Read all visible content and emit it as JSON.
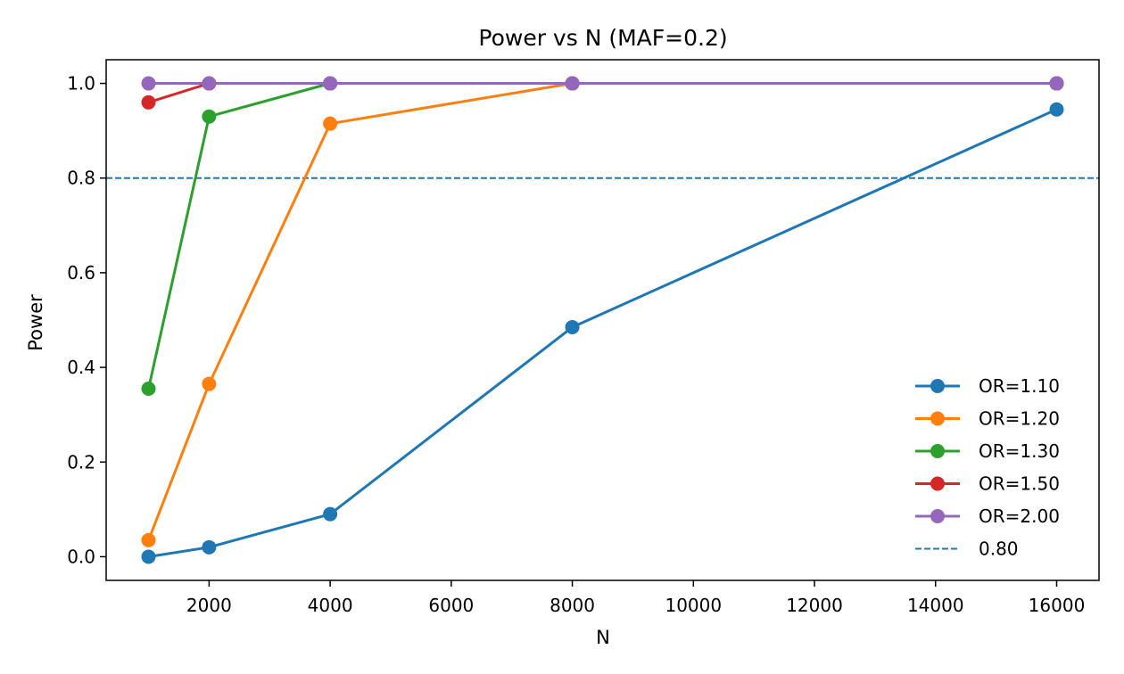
{
  "chart_data": {
    "type": "line",
    "title": "Power vs N (MAF=0.2)",
    "xlabel": "N",
    "ylabel": "Power",
    "xlim": [
      300,
      16700
    ],
    "ylim": [
      -0.05,
      1.05
    ],
    "xticks": [
      2000,
      4000,
      6000,
      8000,
      10000,
      12000,
      14000,
      16000
    ],
    "yticks": [
      0.0,
      0.2,
      0.4,
      0.6,
      0.8,
      1.0
    ],
    "xtick_labels": [
      "2000",
      "4000",
      "6000",
      "8000",
      "10000",
      "12000",
      "14000",
      "16000"
    ],
    "ytick_labels": [
      "0.0",
      "0.2",
      "0.4",
      "0.6",
      "0.8",
      "1.0"
    ],
    "grid": false,
    "legend_position": "lower-right",
    "x": [
      1000,
      2000,
      4000,
      8000,
      16000
    ],
    "series": [
      {
        "name": "OR=1.10",
        "color": "#1f77b4",
        "values": [
          0.0,
          0.02,
          0.09,
          0.485,
          0.945
        ]
      },
      {
        "name": "OR=1.20",
        "color": "#ff7f0e",
        "values": [
          0.035,
          0.365,
          0.915,
          1.0,
          1.0
        ]
      },
      {
        "name": "OR=1.30",
        "color": "#2ca02c",
        "values": [
          0.355,
          0.93,
          1.0,
          1.0,
          1.0
        ]
      },
      {
        "name": "OR=1.50",
        "color": "#d62728",
        "values": [
          0.96,
          1.0,
          1.0,
          1.0,
          1.0
        ]
      },
      {
        "name": "OR=2.00",
        "color": "#9467bd",
        "values": [
          1.0,
          1.0,
          1.0,
          1.0,
          1.0
        ]
      }
    ],
    "reference_line": {
      "name": "0.80",
      "y": 0.8,
      "color": "#1f77b4",
      "style": "dashed"
    }
  }
}
